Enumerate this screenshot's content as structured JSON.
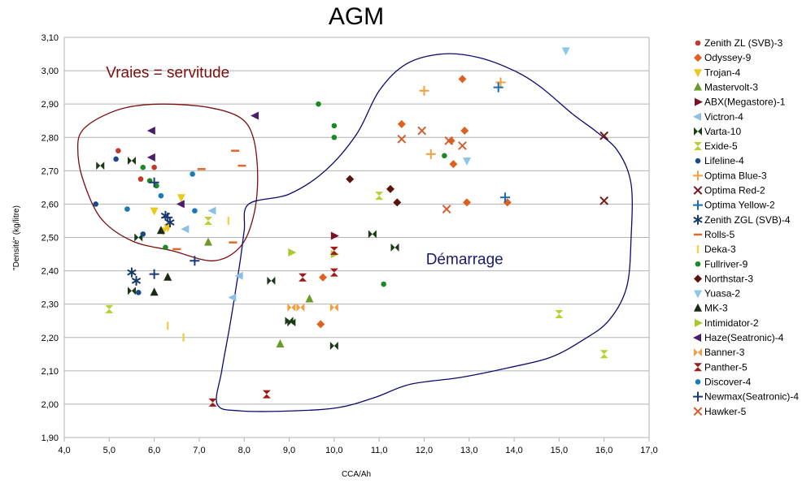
{
  "chart_data": {
    "type": "scatter",
    "title": "AGM",
    "xlabel": "CCA/Ah",
    "ylabel": "\"Densité\" (kg/litre)",
    "xlim": [
      4.0,
      17.0
    ],
    "ylim": [
      1.9,
      3.1
    ],
    "x_ticks": [
      "4,0",
      "5,0",
      "6,0",
      "7,0",
      "8,0",
      "9,0",
      "10,0",
      "11,0",
      "12,0",
      "13,0",
      "14,0",
      "15,0",
      "16,0",
      "17,0"
    ],
    "y_ticks": [
      "1,90",
      "2,00",
      "2,10",
      "2,20",
      "2,30",
      "2,40",
      "2,50",
      "2,60",
      "2,70",
      "2,80",
      "2,90",
      "3,00",
      "3,10"
    ],
    "grid": "horizontal",
    "legend_position": "right",
    "annotations": [
      {
        "text": "Vraies = servitude",
        "x": 6.3,
        "y": 2.98,
        "color": "#7a1010"
      },
      {
        "text": "Démarrage",
        "x": 12.9,
        "y": 2.42,
        "color": "#1a1a6e"
      }
    ],
    "regions": [
      {
        "name": "servitude",
        "color": "#7a1010",
        "outline": [
          [
            4.4,
            2.82
          ],
          [
            4.8,
            2.86
          ],
          [
            5.4,
            2.89
          ],
          [
            6.2,
            2.9
          ],
          [
            7.2,
            2.89
          ],
          [
            7.9,
            2.86
          ],
          [
            8.2,
            2.8
          ],
          [
            8.3,
            2.68
          ],
          [
            8.2,
            2.56
          ],
          [
            7.9,
            2.47
          ],
          [
            7.3,
            2.43
          ],
          [
            6.4,
            2.46
          ],
          [
            5.5,
            2.49
          ],
          [
            4.8,
            2.56
          ],
          [
            4.4,
            2.68
          ],
          [
            4.3,
            2.77
          ]
        ]
      },
      {
        "name": "demarrage",
        "color": "#0b0b6e",
        "outline": [
          [
            8.1,
            2.6
          ],
          [
            9.0,
            2.63
          ],
          [
            9.8,
            2.7
          ],
          [
            10.5,
            2.81
          ],
          [
            11.0,
            2.94
          ],
          [
            11.6,
            3.02
          ],
          [
            12.4,
            3.05
          ],
          [
            13.2,
            3.04
          ],
          [
            14.0,
            3.0
          ],
          [
            14.6,
            2.95
          ],
          [
            15.3,
            2.87
          ],
          [
            15.8,
            2.82
          ],
          [
            16.3,
            2.76
          ],
          [
            16.6,
            2.66
          ],
          [
            16.6,
            2.5
          ],
          [
            16.5,
            2.35
          ],
          [
            16.1,
            2.25
          ],
          [
            15.5,
            2.19
          ],
          [
            14.8,
            2.14
          ],
          [
            13.9,
            2.11
          ],
          [
            12.8,
            2.08
          ],
          [
            11.7,
            2.06
          ],
          [
            10.9,
            2.02
          ],
          [
            10.1,
            1.99
          ],
          [
            9.1,
            1.98
          ],
          [
            7.9,
            1.98
          ],
          [
            7.4,
            2.0
          ],
          [
            7.5,
            2.1
          ],
          [
            7.7,
            2.25
          ],
          [
            7.9,
            2.42
          ],
          [
            8.0,
            2.52
          ]
        ]
      }
    ],
    "series": [
      {
        "name": "Zenith ZL (SVB)-3",
        "marker": "circle",
        "color": "#c0392b",
        "x": [
          5.2,
          6.0,
          5.7
        ],
        "y": [
          2.76,
          2.71,
          2.675
        ]
      },
      {
        "name": "Odyssey-9",
        "marker": "diamond",
        "color": "#e06020",
        "x": [
          12.85,
          12.9,
          12.6,
          12.65,
          12.95,
          13.85,
          11.5,
          9.7,
          9.75
        ],
        "y": [
          2.975,
          2.82,
          2.79,
          2.72,
          2.605,
          2.605,
          2.84,
          2.24,
          2.38
        ]
      },
      {
        "name": "Trojan-4",
        "marker": "tri-down",
        "color": "#ecc820",
        "x": [
          6.0,
          6.2,
          6.6,
          6.3
        ],
        "y": [
          2.58,
          2.52,
          2.62,
          2.53
        ]
      },
      {
        "name": "Mastervolt-3",
        "marker": "tri-up",
        "color": "#6a9a28",
        "x": [
          7.2,
          8.8,
          9.45
        ],
        "y": [
          2.485,
          2.18,
          2.315
        ]
      },
      {
        "name": "ABX(Megastore)-1",
        "marker": "tri-right",
        "color": "#7a1028",
        "x": [
          10.0
        ],
        "y": [
          2.505
        ]
      },
      {
        "name": "Victron-4",
        "marker": "tri-left",
        "color": "#8ec0e6",
        "x": [
          7.3,
          7.75,
          6.7,
          7.9
        ],
        "y": [
          2.58,
          2.32,
          2.525,
          2.385
        ]
      },
      {
        "name": "Varta-10",
        "marker": "bowtie",
        "color": "#1a3a14",
        "x": [
          4.8,
          5.5,
          5.65,
          5.5,
          8.6,
          10.85,
          11.35,
          9.05,
          10.0,
          9.0
        ],
        "y": [
          2.715,
          2.73,
          2.5,
          2.34,
          2.37,
          2.51,
          2.47,
          2.245,
          2.175,
          2.25
        ]
      },
      {
        "name": "Exide-5",
        "marker": "hourglass",
        "color": "#b8d030",
        "x": [
          5.0,
          7.2,
          11.0,
          15.0,
          16.0
        ],
        "y": [
          2.285,
          2.55,
          2.625,
          2.27,
          2.15
        ]
      },
      {
        "name": "Lifeline-4",
        "marker": "circle",
        "color": "#1a4a8a",
        "x": [
          4.7,
          5.15,
          5.65,
          5.75
        ],
        "y": [
          2.6,
          2.735,
          2.335,
          2.51
        ]
      },
      {
        "name": "Optima Blue-3",
        "marker": "plus",
        "color": "#f0a040",
        "x": [
          12.0,
          12.15,
          13.7
        ],
        "y": [
          2.94,
          2.75,
          2.965
        ]
      },
      {
        "name": "Optima Red-2",
        "marker": "cross",
        "color": "#7a1818",
        "x": [
          16.0,
          16.0
        ],
        "y": [
          2.805,
          2.61
        ]
      },
      {
        "name": "Optima Yellow-2",
        "marker": "plus",
        "color": "#1a6ab0",
        "x": [
          13.65,
          13.8
        ],
        "y": [
          2.95,
          2.62
        ]
      },
      {
        "name": "Zenith ZGL (SVB)-4",
        "marker": "asterisk",
        "color": "#1a3a6a",
        "x": [
          5.5,
          5.6,
          6.25,
          6.35
        ],
        "y": [
          2.395,
          2.37,
          2.565,
          2.545
        ]
      },
      {
        "name": "Rolls-5",
        "marker": "dash",
        "color": "#e06828",
        "x": [
          7.8,
          7.95,
          7.05,
          6.5,
          7.75
        ],
        "y": [
          2.76,
          2.715,
          2.705,
          2.465,
          2.485
        ]
      },
      {
        "name": "Deka-3",
        "marker": "vbar",
        "color": "#f0d050",
        "x": [
          6.3,
          6.65,
          7.65
        ],
        "y": [
          2.235,
          2.2,
          2.55
        ]
      },
      {
        "name": "Fullriver-9",
        "marker": "circle",
        "color": "#1a8a28",
        "x": [
          9.65,
          10.0,
          10.0,
          5.75,
          5.9,
          6.25,
          11.1,
          12.45,
          6.05
        ],
        "y": [
          2.9,
          2.835,
          2.8,
          2.71,
          2.67,
          2.47,
          2.36,
          2.745,
          2.655
        ]
      },
      {
        "name": "Northstar-3",
        "marker": "diamond",
        "color": "#5a1410",
        "x": [
          10.35,
          11.25,
          11.4
        ],
        "y": [
          2.675,
          2.645,
          2.605
        ]
      },
      {
        "name": "Yuasa-2",
        "marker": "tri-down",
        "color": "#8ec8e8",
        "x": [
          15.15,
          12.95
        ],
        "y": [
          3.06,
          2.73
        ]
      },
      {
        "name": "MK-3",
        "marker": "tri-up",
        "color": "#1a2a14",
        "x": [
          6.0,
          6.3,
          6.15
        ],
        "y": [
          2.335,
          2.38,
          2.52
        ]
      },
      {
        "name": "Intimidator-2",
        "marker": "tri-right",
        "color": "#a8c830",
        "x": [
          9.05,
          10.0
        ],
        "y": [
          2.455,
          2.45
        ]
      },
      {
        "name": "Haze(Seatronic)-4",
        "marker": "tri-left",
        "color": "#4a1c6a",
        "x": [
          5.95,
          5.95,
          6.6,
          8.25
        ],
        "y": [
          2.82,
          2.74,
          2.6,
          2.865
        ]
      },
      {
        "name": "Banner-3",
        "marker": "bowtie",
        "color": "#f0a040",
        "x": [
          9.05,
          9.25,
          10.0
        ],
        "y": [
          2.29,
          2.29,
          2.29
        ]
      },
      {
        "name": "Panther-5",
        "marker": "hourglass",
        "color": "#a01818",
        "x": [
          7.3,
          8.5,
          9.3,
          10.0,
          10.0
        ],
        "y": [
          2.005,
          2.03,
          2.38,
          2.395,
          2.46
        ]
      },
      {
        "name": "Discover-4",
        "marker": "circle",
        "color": "#1a7ab8",
        "x": [
          5.4,
          6.15,
          6.85,
          6.9
        ],
        "y": [
          2.585,
          2.625,
          2.69,
          2.58
        ]
      },
      {
        "name": "Newmax(Seatronic)-4",
        "marker": "plus",
        "color": "#1a3a7a",
        "x": [
          6.0,
          6.0,
          6.3,
          6.9
        ],
        "y": [
          2.665,
          2.39,
          2.56,
          2.43
        ]
      },
      {
        "name": "Hawker-5",
        "marker": "cross",
        "color": "#d06030",
        "x": [
          11.5,
          11.95,
          12.5,
          12.85,
          12.55
        ],
        "y": [
          2.795,
          2.82,
          2.585,
          2.775,
          2.79
        ]
      }
    ]
  }
}
